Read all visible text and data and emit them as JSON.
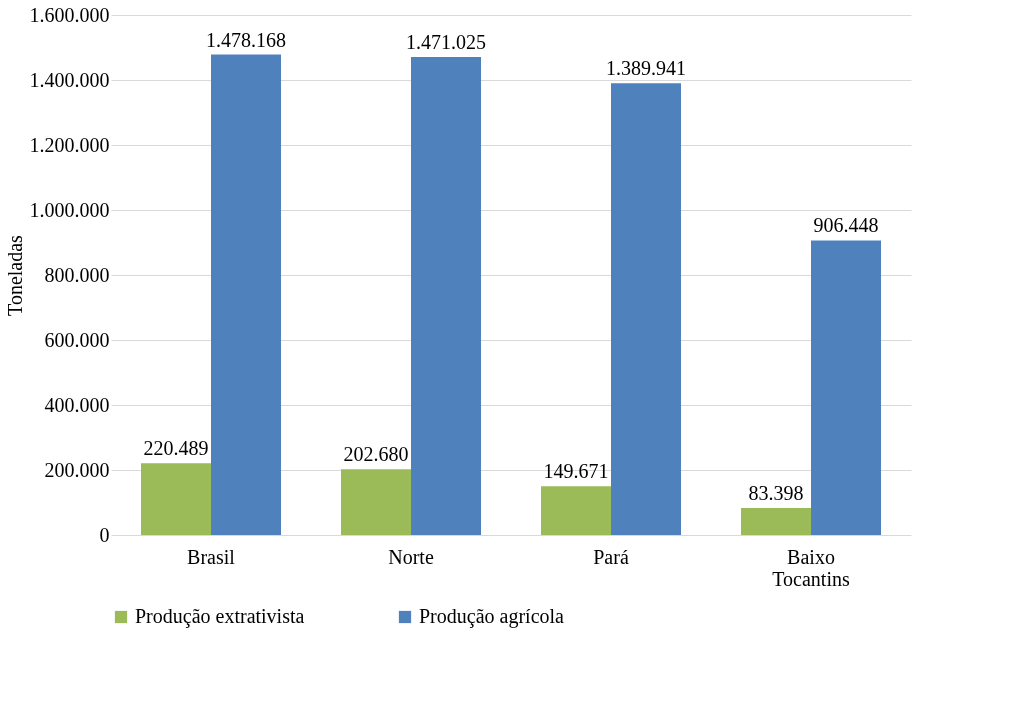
{
  "chart_data": {
    "type": "bar",
    "ylabel": "Toneladas",
    "categories": [
      "Brasil",
      "Norte",
      "Pará",
      "Baixo Tocantins"
    ],
    "series": [
      {
        "name": "Produção extrativista",
        "color": "#9bbb59",
        "values": [
          220489,
          202680,
          149671,
          83398
        ],
        "value_labels": [
          "220.489",
          "202.680",
          "149.671",
          "83.398"
        ]
      },
      {
        "name": "Produção agrícola",
        "color": "#4f81bd",
        "values": [
          1478168,
          1471025,
          1389941,
          906448
        ],
        "value_labels": [
          "1.478.168",
          "1.471.025",
          "1.389.941",
          "906.448"
        ]
      }
    ],
    "ylim": [
      0,
      1600000
    ],
    "yticks": [
      0,
      {
        "value": 200000,
        "label": "200.000"
      },
      {
        "value": 400000,
        "label": "400.000"
      },
      {
        "value": 600000,
        "label": "600.000"
      },
      {
        "value": 800000,
        "label": "800.000"
      },
      {
        "value": 1000000,
        "label": "1.000.000"
      },
      {
        "value": 1200000,
        "label": "1.200.000"
      },
      {
        "value": 1400000,
        "label": "1.400.000"
      },
      {
        "value": 1600000,
        "label": "1.600.000"
      }
    ],
    "grid": "y",
    "legend": "bottom"
  }
}
